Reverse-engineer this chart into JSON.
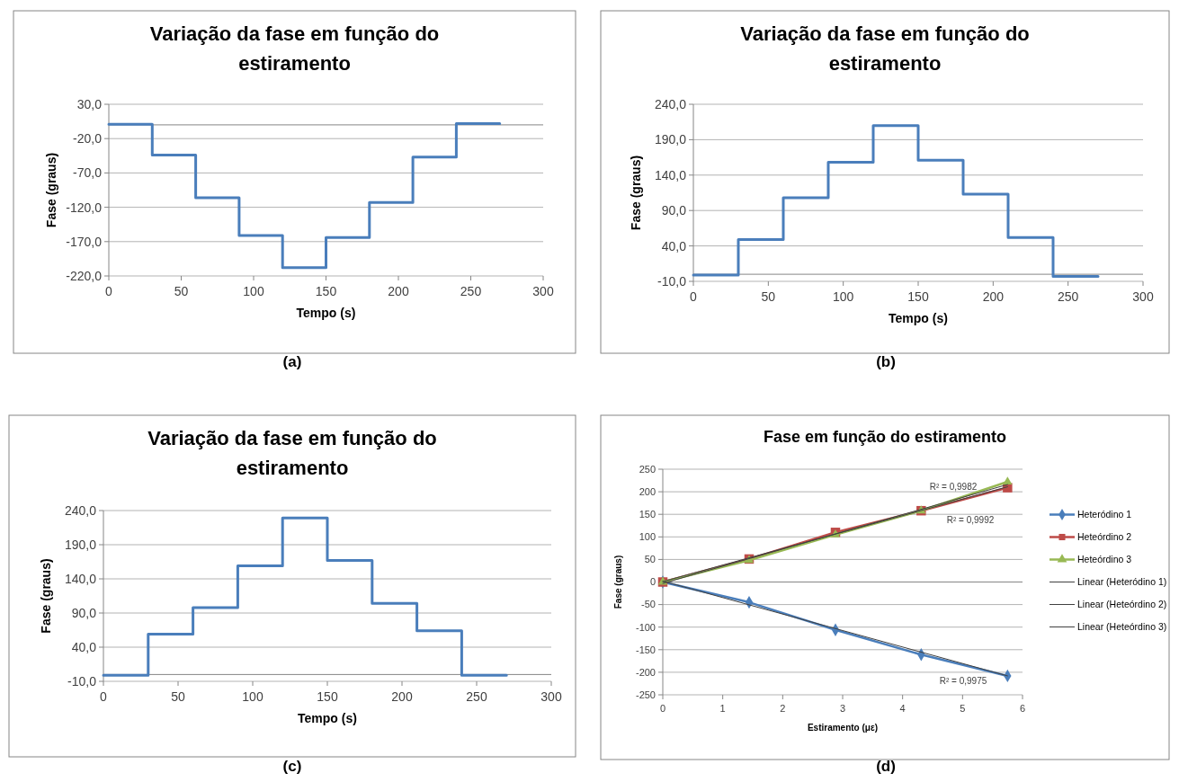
{
  "chart_data": [
    {
      "type": "step",
      "title": "Variação da fase em função do estiramento",
      "xlabel": "Tempo (s)",
      "ylabel": "Fase (graus)",
      "x": [
        0,
        30,
        60,
        90,
        120,
        150,
        180,
        210,
        240,
        270
      ],
      "series": [
        {
          "color": "#4a7ebb",
          "values": [
            1,
            -44,
            -106,
            -161,
            -208,
            -164,
            -113,
            -47,
            2,
            2
          ]
        }
      ],
      "xlim": [
        0,
        300
      ],
      "xticks": [
        0,
        50,
        100,
        150,
        200,
        250,
        300
      ],
      "ylim": [
        -220,
        30
      ],
      "yticks": [
        {
          "value": -220,
          "label": "-220,0"
        },
        {
          "value": -170,
          "label": "-170,0"
        },
        {
          "value": -120,
          "label": "-120,0"
        },
        {
          "value": -70,
          "label": "-70,0"
        },
        {
          "value": -20,
          "label": "-20,0"
        },
        {
          "value": 30,
          "label": "30,0"
        }
      ],
      "grid": "y",
      "annotations": [
        "(a)"
      ]
    },
    {
      "type": "step",
      "title": "Variação da fase em função do estiramento",
      "xlabel": "Tempo (s)",
      "ylabel": "Fase (graus)",
      "x": [
        0,
        30,
        60,
        90,
        120,
        150,
        180,
        210,
        240,
        270
      ],
      "series": [
        {
          "color": "#4a7ebb",
          "values": [
            -1,
            49,
            108,
            158,
            210,
            161,
            113,
            52,
            -3,
            -3
          ]
        }
      ],
      "xlim": [
        0,
        300
      ],
      "xticks": [
        0,
        50,
        100,
        150,
        200,
        250,
        300
      ],
      "ylim": [
        -10,
        240
      ],
      "yticks": [
        {
          "value": -10,
          "label": "-10,0"
        },
        {
          "value": 40,
          "label": "40,0"
        },
        {
          "value": 90,
          "label": "90,0"
        },
        {
          "value": 140,
          "label": "140,0"
        },
        {
          "value": 190,
          "label": "190,0"
        },
        {
          "value": 240,
          "label": "240,0"
        }
      ],
      "grid": "y",
      "annotations": [
        "(b)"
      ]
    },
    {
      "type": "step",
      "title": "Variação da fase em função do estiramento",
      "xlabel": "Tempo (s)",
      "ylabel": "Fase (graus)",
      "x": [
        0,
        30,
        60,
        90,
        120,
        150,
        180,
        210,
        240,
        270
      ],
      "series": [
        {
          "color": "#4a7ebb",
          "values": [
            -1,
            59,
            98,
            159,
            229,
            167,
            104,
            64,
            -1,
            -1
          ]
        }
      ],
      "xlim": [
        0,
        300
      ],
      "xticks": [
        0,
        50,
        100,
        150,
        200,
        250,
        300
      ],
      "ylim": [
        -10,
        240
      ],
      "yticks": [
        {
          "value": -10,
          "label": "-10,0"
        },
        {
          "value": 40,
          "label": "40,0"
        },
        {
          "value": 90,
          "label": "90,0"
        },
        {
          "value": 140,
          "label": "140,0"
        },
        {
          "value": 190,
          "label": "190,0"
        },
        {
          "value": 240,
          "label": "240,0"
        }
      ],
      "grid": "y",
      "annotations": [
        "(c)"
      ]
    },
    {
      "type": "line",
      "title": "Fase em função do estiramento",
      "xlabel": "Estiramento (με)",
      "ylabel": "Fase (graus)",
      "series": [
        {
          "name": "Heteródino 1",
          "color": "#4a7ebb",
          "marker": "diamond",
          "x": [
            0,
            1.44,
            2.88,
            4.31,
            5.75
          ],
          "values": [
            0,
            -45,
            -106,
            -161,
            -208
          ]
        },
        {
          "name": "Heteórdino 2",
          "color": "#be4b48",
          "marker": "square",
          "x": [
            0,
            1.44,
            2.88,
            4.31,
            5.75
          ],
          "values": [
            0,
            51,
            110,
            158,
            209
          ]
        },
        {
          "name": "Heteórdino 3",
          "color": "#98b954",
          "marker": "triangle",
          "x": [
            0,
            1.44,
            2.88,
            4.31,
            5.75
          ],
          "values": [
            0,
            48,
            105,
            158,
            222
          ]
        },
        {
          "name": "Linear (Heteródino 1)",
          "color": "#404040",
          "marker": "none",
          "x": [
            0,
            5.75
          ],
          "values": [
            2,
            -208
          ]
        },
        {
          "name": "Linear (Heteórdino 2)",
          "color": "#404040",
          "marker": "none",
          "x": [
            0,
            5.75
          ],
          "values": [
            1,
            211
          ]
        },
        {
          "name": "Linear (Heteórdino 3)",
          "color": "#404040",
          "marker": "none",
          "x": [
            0,
            5.75
          ],
          "values": [
            -3,
            216
          ]
        }
      ],
      "xlim": [
        0,
        6
      ],
      "xticks": [
        0,
        1,
        2,
        3,
        4,
        5,
        6
      ],
      "ylim": [
        -250,
        250
      ],
      "yticks": [
        -250,
        -200,
        -150,
        -100,
        -50,
        0,
        50,
        100,
        150,
        200,
        250
      ],
      "grid": "y",
      "legend": "right",
      "annotations": [
        "R² = 0,9982",
        "R² = 0,9992",
        "R² = 0,9975",
        "(d)"
      ]
    }
  ]
}
